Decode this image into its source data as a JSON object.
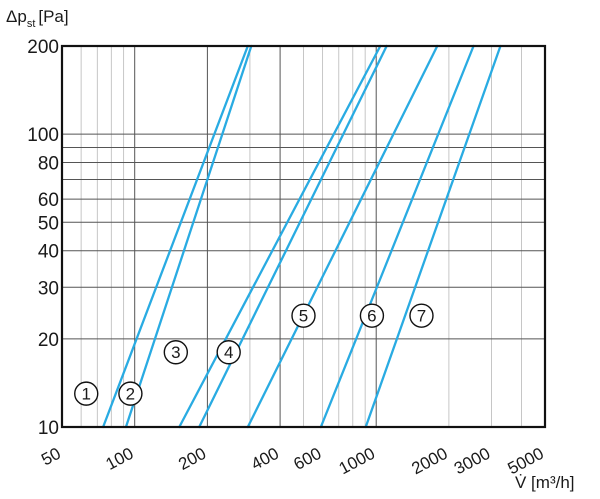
{
  "chart_data": {
    "type": "line",
    "ylabel": "Δp",
    "ylabel_sub": "st",
    "ylabel_unit": "[Pa]",
    "xlabel": "V̇ [m³/h]",
    "x_scale": "log",
    "y_scale": "log",
    "xlim": [
      50,
      5000
    ],
    "ylim": [
      10,
      200
    ],
    "grid": true,
    "x_ticks": [
      50,
      100,
      200,
      400,
      600,
      1000,
      2000,
      3000,
      5000
    ],
    "x_tick_labels": [
      "50",
      "100",
      "200",
      "400",
      "600",
      "1000",
      "2000",
      "3000",
      "5000"
    ],
    "y_ticks": [
      10,
      20,
      30,
      40,
      50,
      60,
      80,
      100,
      200
    ],
    "y_tick_labels": [
      "10",
      "20",
      "30",
      "40",
      "50",
      "60",
      "80",
      "100",
      "200"
    ],
    "line_color": "#29abe2",
    "series": [
      {
        "name": "1",
        "points": [
          [
            74,
            10
          ],
          [
            294,
            200
          ]
        ],
        "label_at": [
          63,
          13
        ]
      },
      {
        "name": "2",
        "points": [
          [
            92,
            10
          ],
          [
            304,
            200
          ]
        ],
        "label_at": [
          96,
          13
        ]
      },
      {
        "name": "3",
        "points": [
          [
            153,
            10
          ],
          [
            1040,
            200
          ]
        ],
        "label_at": [
          148,
          18
        ]
      },
      {
        "name": "4",
        "points": [
          [
            185,
            10
          ],
          [
            1105,
            200
          ]
        ],
        "label_at": [
          245,
          18
        ]
      },
      {
        "name": "5",
        "points": [
          [
            294,
            10
          ],
          [
            1790,
            200
          ]
        ],
        "label_at": [
          500,
          24
        ]
      },
      {
        "name": "6",
        "points": [
          [
            590,
            10
          ],
          [
            2530,
            200
          ]
        ],
        "label_at": [
          960,
          24
        ]
      },
      {
        "name": "7",
        "points": [
          [
            905,
            10
          ],
          [
            3270,
            200
          ]
        ],
        "label_at": [
          1540,
          24
        ]
      }
    ]
  }
}
